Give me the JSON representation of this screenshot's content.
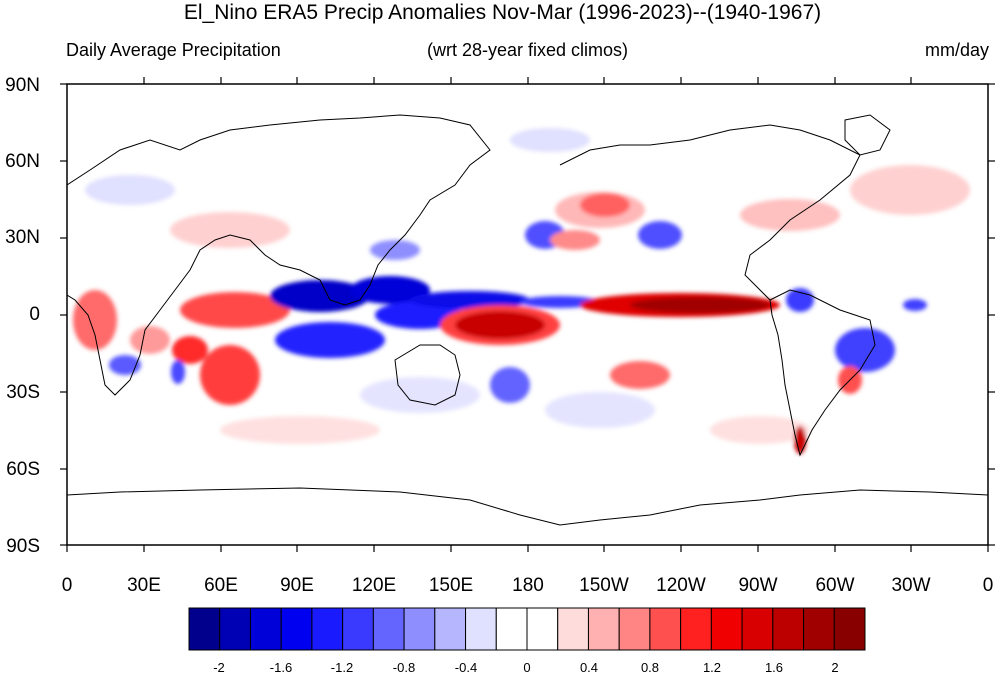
{
  "title": "El_Nino ERA5 Precip Anomalies Nov-Mar (1996-2023)--(1940-1967)",
  "subtitle_left": "Daily Average Precipitation",
  "subtitle_center": "(wrt 28-year fixed climos)",
  "subtitle_right": "mm/day",
  "y_axis_labels": [
    "90N",
    "60N",
    "30N",
    "0",
    "30S",
    "60S",
    "90S"
  ],
  "x_axis_labels": [
    "0",
    "30E",
    "60E",
    "90E",
    "120E",
    "150E",
    "180",
    "150W",
    "120W",
    "90W",
    "60W",
    "30W",
    "0"
  ],
  "colorbar": {
    "labels": [
      "-2",
      "-1.6",
      "-1.2",
      "-0.8",
      "-0.4",
      "0",
      "0.4",
      "0.8",
      "1.2",
      "1.6",
      "2"
    ],
    "colors": [
      "#00008c",
      "#0000b4",
      "#0000d8",
      "#0000f0",
      "#1a1aff",
      "#3a3aff",
      "#6464ff",
      "#8e8eff",
      "#b6b6ff",
      "#e0e0ff",
      "#ffffff",
      "#ffffff",
      "#ffdcdc",
      "#ffb0b0",
      "#ff8484",
      "#ff5050",
      "#ff2020",
      "#f00000",
      "#d80000",
      "#bc0000",
      "#a00000",
      "#880000"
    ]
  },
  "map": {
    "projection": "cylindrical equidistant",
    "lon_range": [
      0,
      360
    ],
    "lat_range": [
      -90,
      90
    ],
    "positive_color": "#e00000",
    "negative_color": "#0000d0"
  }
}
